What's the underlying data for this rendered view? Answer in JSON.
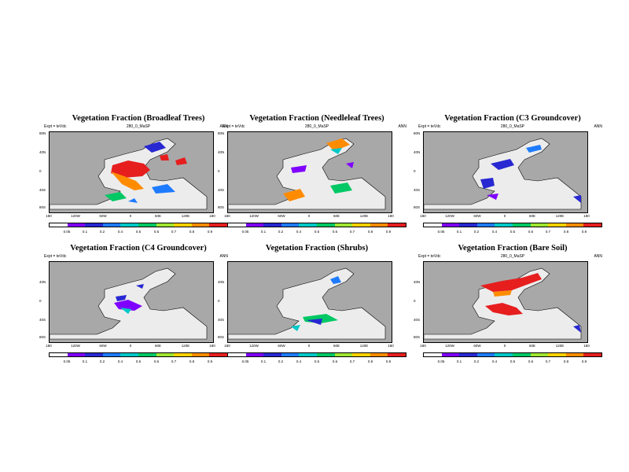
{
  "expt_label": "Expt = teVdc",
  "case_label": "280_0_MaSP",
  "season_label": "ANN",
  "lat_ticks": [
    "80N",
    "40N",
    "0",
    "40S",
    "80S"
  ],
  "lon_ticks": [
    "180",
    "120W",
    "60W",
    "0",
    "60E",
    "120E",
    "180"
  ],
  "colorbar_labels": [
    "0.05",
    "0.1",
    "0.2",
    "0.4",
    "0.5",
    "0.6",
    "0.7",
    "0.8",
    "0.9"
  ],
  "colorbar_colors": [
    "#ffffff",
    "#7f00ff",
    "#2828d2",
    "#1e7bff",
    "#00c8c8",
    "#00c864",
    "#a0e632",
    "#ffd200",
    "#ff8c00",
    "#e61e1e"
  ],
  "land_color": "#ececec",
  "ocean_color": "#a8a8a8",
  "panels": [
    {
      "title": "Vegetation Fraction (Broadleaf Trees)"
    },
    {
      "title": "Vegetation Fraction (Needleleaf Trees)"
    },
    {
      "title": "Vegetation Fraction (C3 Groundcover)"
    },
    {
      "title": "Vegetation Fraction (C4 Groundcover)"
    },
    {
      "title": "Vegetation Fraction (Shrubs)"
    },
    {
      "title": "Vegetation Fraction (Bare Soil)"
    }
  ]
}
